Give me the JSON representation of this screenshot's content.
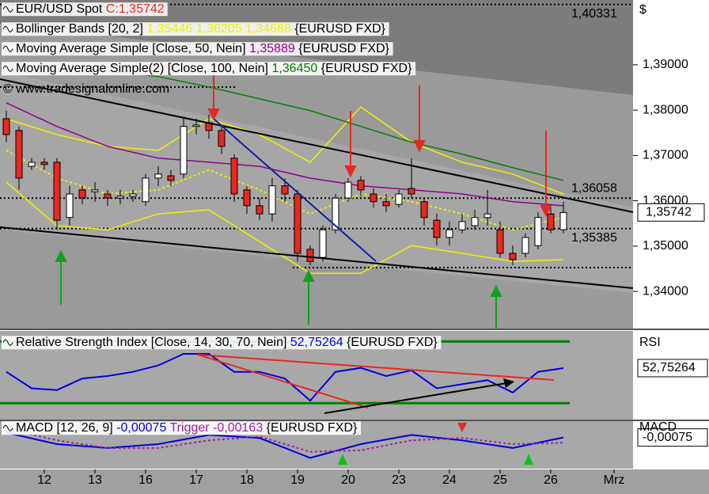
{
  "chart_data": [
    {
      "type": "candlestick",
      "title": "EUR/USD Spot",
      "last": "C:1,35742",
      "last_color": "#e8281e",
      "legend": [
        {
          "text": "Bollinger Bands [20, 2]",
          "values": "1,35446 1,36205 1,34688",
          "color": "#f0f000",
          "suffix": "{EURUSD FXD}"
        },
        {
          "text": "Moving Average Simple [Close, 50, Nein]",
          "values": "1,35889",
          "color": "#900090",
          "suffix": "{EURUSD FXD}"
        },
        {
          "text": "Moving Average Simple(2) [Close, 100, Nein]",
          "values": "1,36450",
          "color": "#008000",
          "suffix": "{EURUSD FXD}"
        }
      ],
      "copyright": "© www.tradesignalonline.com",
      "currency": "$",
      "xlim": [
        -0.5,
        49.5
      ],
      "xticks": [
        {
          "value": 3,
          "label": "12"
        },
        {
          "value": 7,
          "label": "13"
        },
        {
          "value": 11,
          "label": "16"
        },
        {
          "value": 15,
          "label": "17"
        },
        {
          "value": 19,
          "label": "18"
        },
        {
          "value": 23,
          "label": "19"
        },
        {
          "value": 27,
          "label": "20"
        },
        {
          "value": 31,
          "label": "23"
        },
        {
          "value": 35,
          "label": "24"
        },
        {
          "value": 39,
          "label": "25"
        },
        {
          "value": 43,
          "label": "26"
        },
        {
          "value": 48,
          "label": "Mrz"
        }
      ],
      "ylim": [
        1.3318,
        1.4043
      ],
      "yticks": [
        {
          "value": 1.39,
          "label": "1,39000"
        },
        {
          "value": 1.38,
          "label": "1,38000"
        },
        {
          "value": 1.37,
          "label": "1,37000"
        },
        {
          "value": 1.36,
          "label": "1,36000"
        },
        {
          "value": 1.35,
          "label": "1,35000"
        },
        {
          "value": 1.34,
          "label": "1,34000"
        }
      ],
      "x": [
        0,
        1,
        2,
        3,
        4,
        5,
        6,
        7,
        8,
        9,
        10,
        11,
        12,
        13,
        14,
        15,
        16,
        17,
        18,
        19,
        20,
        21,
        22,
        23,
        24,
        25,
        26,
        27,
        28,
        29,
        30,
        31,
        32,
        33,
        34,
        35,
        36,
        37,
        38,
        39,
        40,
        41,
        42,
        43,
        44
      ],
      "open": [
        1.3781,
        1.3755,
        1.3676,
        1.3685,
        1.3685,
        1.3563,
        1.3624,
        1.362,
        1.3615,
        1.3606,
        1.361,
        1.3598,
        1.365,
        1.3655,
        1.3659,
        1.3764,
        1.3772,
        1.3755,
        1.3694,
        1.3624,
        1.3589,
        1.3571,
        1.3633,
        1.3615,
        1.3493,
        1.3475,
        1.3536,
        1.3606,
        1.3645,
        1.3615,
        1.3598,
        1.3592,
        1.3627,
        1.3598,
        1.3557,
        1.3519,
        1.3536,
        1.3545,
        1.3563,
        1.3536,
        1.3484,
        1.3484,
        1.3501,
        1.3571,
        1.3536
      ],
      "high": [
        1.3799,
        1.3764,
        1.3694,
        1.3694,
        1.3694,
        1.3633,
        1.3633,
        1.3641,
        1.3624,
        1.3624,
        1.3624,
        1.3659,
        1.3676,
        1.3668,
        1.3781,
        1.3781,
        1.379,
        1.3764,
        1.3703,
        1.3633,
        1.3606,
        1.365,
        1.365,
        1.3624,
        1.3501,
        1.3545,
        1.3615,
        1.365,
        1.3655,
        1.3627,
        1.3615,
        1.3624,
        1.3694,
        1.3606,
        1.3571,
        1.3554,
        1.3571,
        1.358,
        1.3624,
        1.3554,
        1.3501,
        1.3528,
        1.3575,
        1.3592,
        1.3598
      ],
      "low": [
        1.3729,
        1.3624,
        1.3668,
        1.3668,
        1.3536,
        1.3545,
        1.3592,
        1.3598,
        1.3589,
        1.3592,
        1.3598,
        1.3589,
        1.3633,
        1.3633,
        1.365,
        1.3746,
        1.3737,
        1.3703,
        1.3598,
        1.3571,
        1.3557,
        1.3554,
        1.3598,
        1.3466,
        1.3458,
        1.3466,
        1.3528,
        1.3598,
        1.361,
        1.3585,
        1.3575,
        1.3585,
        1.3606,
        1.3545,
        1.3501,
        1.3501,
        1.3528,
        1.3536,
        1.3545,
        1.3475,
        1.3458,
        1.3475,
        1.3493,
        1.3528,
        1.3528
      ],
      "close": [
        1.3746,
        1.365,
        1.3685,
        1.368,
        1.3557,
        1.3615,
        1.3606,
        1.3624,
        1.3606,
        1.361,
        1.3615,
        1.365,
        1.3659,
        1.3645,
        1.3764,
        1.3767,
        1.3755,
        1.372,
        1.3615,
        1.3589,
        1.3571,
        1.3633,
        1.3615,
        1.3484,
        1.3466,
        1.3536,
        1.3606,
        1.3641,
        1.3624,
        1.3598,
        1.3589,
        1.3615,
        1.3615,
        1.3563,
        1.3519,
        1.3536,
        1.3554,
        1.3563,
        1.3571,
        1.3484,
        1.347,
        1.3519,
        1.3563,
        1.3536,
        1.3574
      ],
      "up_color": "#ffffff",
      "down_color": "#e8281e",
      "overlays": [
        {
          "color": "#f0f000",
          "dashed": false,
          "x": [
            0,
            4,
            8,
            12,
            16,
            20,
            24,
            28,
            32,
            36,
            40,
            44
          ],
          "values": [
            1.3781,
            1.3746,
            1.372,
            1.3711,
            1.3781,
            1.3746,
            1.3685,
            1.3807,
            1.3729,
            1.3685,
            1.3659,
            1.3615
          ]
        },
        {
          "color": "#f0f000",
          "dashed": true,
          "x": [
            0,
            4,
            8,
            12,
            16,
            20,
            24,
            28,
            32,
            36,
            40,
            44
          ],
          "values": [
            1.3711,
            1.365,
            1.3615,
            1.3624,
            1.3668,
            1.3624,
            1.3571,
            1.3615,
            1.3598,
            1.3571,
            1.3536,
            1.3563
          ]
        },
        {
          "color": "#f0f000",
          "dashed": false,
          "x": [
            0,
            4,
            8,
            12,
            16,
            20,
            24,
            28,
            32,
            36,
            40,
            44
          ],
          "values": [
            1.3641,
            1.3545,
            1.3536,
            1.3571,
            1.358,
            1.351,
            1.344,
            1.344,
            1.3501,
            1.3484,
            1.3466,
            1.347
          ]
        },
        {
          "color": "#900090",
          "dashed": false,
          "x": [
            0,
            4,
            8,
            12,
            16,
            20,
            24,
            28,
            32,
            36,
            40,
            44
          ],
          "values": [
            1.3816,
            1.3764,
            1.372,
            1.3694,
            1.3685,
            1.3676,
            1.365,
            1.3633,
            1.3624,
            1.3615,
            1.3598,
            1.3589
          ]
        },
        {
          "color": "#008000",
          "dashed": false,
          "x": [
            0,
            4,
            8,
            12,
            16,
            20,
            24,
            28,
            32,
            36,
            40,
            44
          ],
          "values": [
            null,
            null,
            1.3886,
            1.3874,
            1.3851,
            1.3825,
            1.3799,
            1.3764,
            1.3729,
            1.3703,
            1.3673,
            1.3645
          ]
        }
      ],
      "levels": [
        {
          "value": 1.40331,
          "label": "1,40331"
        },
        {
          "value": 1.36058,
          "label": "1,36058"
        },
        {
          "value": 1.35385,
          "label": "1,35385"
        }
      ],
      "price_marker": {
        "value": 1.35742,
        "label": "1,35742"
      }
    },
    {
      "type": "line",
      "title": "Relative Strength Index [Close, 14, 30, 70, Nein]",
      "last": "52,75264",
      "last_color": "#0000e0",
      "suffix": "{EURUSD FXD}",
      "axis_label": "RSI",
      "xlim": [
        -0.5,
        49.5
      ],
      "ylim": [
        19.3,
        76.9
      ],
      "levels": [
        70,
        30
      ],
      "level_color": "#008000",
      "series": [
        {
          "color": "#0000e0",
          "dashed": false,
          "x": [
            0,
            2,
            4,
            6,
            8,
            10,
            12,
            14,
            16,
            18,
            20,
            22,
            24,
            26,
            28,
            30,
            32,
            34,
            36,
            38,
            40,
            42,
            44
          ],
          "values": [
            50.3,
            39.6,
            38.5,
            46.0,
            47.6,
            50.3,
            54.5,
            62.0,
            62.0,
            50.3,
            50.3,
            46.0,
            31.6,
            50.3,
            52.9,
            47.6,
            51.3,
            39.6,
            42.3,
            44.9,
            36.9,
            50.3,
            52.75264
          ]
        }
      ]
    },
    {
      "type": "line",
      "title": "MACD [12, 26, 9]",
      "last": "-0,00075",
      "last_color": "#0000e0",
      "trigger": "Trigger",
      "trigger_last": "-0,00163",
      "trigger_color": "#a020a0",
      "suffix": "{EURUSD FXD}",
      "axis_label": "MACD",
      "xlim": [
        -0.5,
        49.5
      ],
      "ylim": [
        -0.006,
        0.002
      ],
      "levels": [],
      "level_color": "#008000",
      "series": [
        {
          "color": "#0000e0",
          "dashed": false,
          "x": [
            0,
            4,
            8,
            12,
            16,
            20,
            24,
            28,
            32,
            36,
            40,
            44
          ],
          "values": [
            6e-05,
            -0.00187,
            -0.00252,
            -0.00187,
            -0.00032,
            -0.00084,
            -0.00419,
            -0.00187,
            -0.00032,
            -0.00123,
            -0.00252,
            -0.00075
          ]
        },
        {
          "color": "#a020a0",
          "dashed": true,
          "x": [
            0,
            4,
            8,
            12,
            16,
            20,
            24,
            28,
            32,
            36,
            40,
            44
          ],
          "values": [
            0.00071,
            -0.00123,
            -0.00252,
            -0.00252,
            -0.00123,
            -0.00058,
            -0.00316,
            -0.0029,
            -0.00123,
            -0.00084,
            -0.00187,
            -0.00163
          ]
        }
      ]
    }
  ]
}
